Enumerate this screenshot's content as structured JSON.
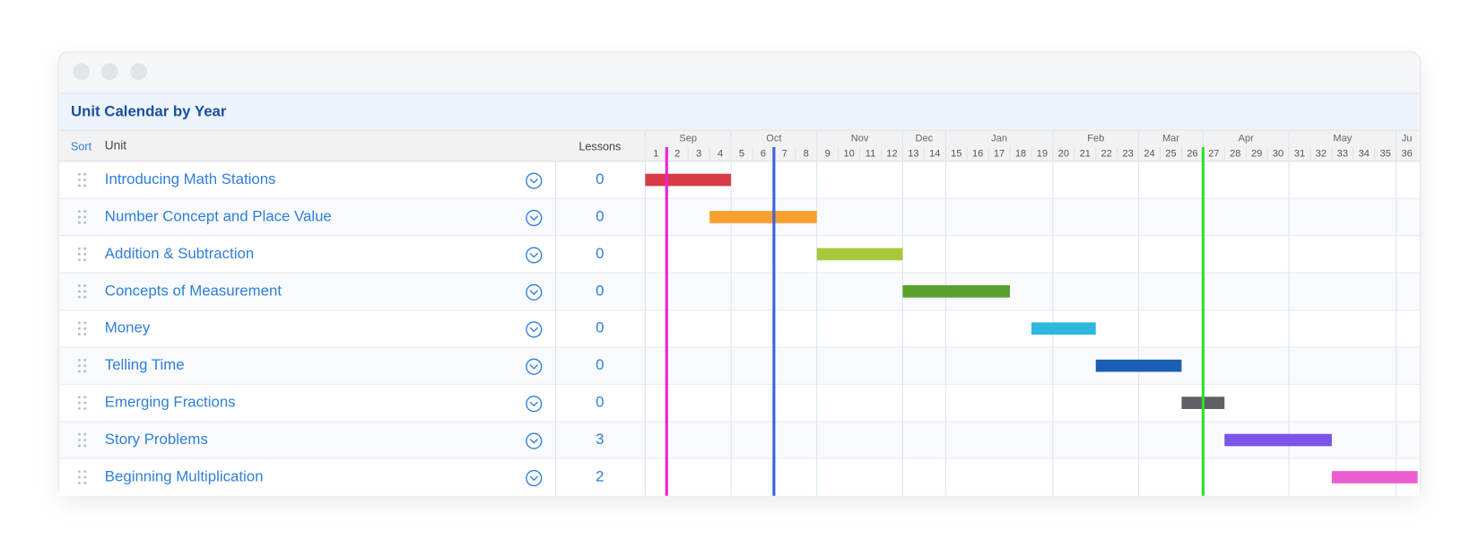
{
  "window": {
    "title": "Unit Calendar by Year"
  },
  "columns": {
    "sort": "Sort",
    "unit": "Unit",
    "lessons": "Lessons"
  },
  "timeline": {
    "weeks": [
      1,
      2,
      3,
      4,
      5,
      6,
      7,
      8,
      9,
      10,
      11,
      12,
      13,
      14,
      15,
      16,
      17,
      18,
      19,
      20,
      21,
      22,
      23,
      24,
      25,
      26,
      27,
      28,
      29,
      30,
      31,
      32,
      33,
      34,
      35,
      36
    ],
    "months": [
      {
        "label": "Sep",
        "start_week": 1,
        "weeks": 4
      },
      {
        "label": "Oct",
        "start_week": 5,
        "weeks": 4
      },
      {
        "label": "Nov",
        "start_week": 9,
        "weeks": 4
      },
      {
        "label": "Dec",
        "start_week": 13,
        "weeks": 2
      },
      {
        "label": "Jan",
        "start_week": 15,
        "weeks": 5
      },
      {
        "label": "Feb",
        "start_week": 20,
        "weeks": 4
      },
      {
        "label": "Mar",
        "start_week": 24,
        "weeks": 3
      },
      {
        "label": "Apr",
        "start_week": 27,
        "weeks": 4
      },
      {
        "label": "May",
        "start_week": 31,
        "weeks": 5
      },
      {
        "label": "Ju",
        "start_week": 36,
        "weeks": 1
      }
    ],
    "markers": [
      {
        "week": 2,
        "color": "#ee22d8"
      },
      {
        "week": 7,
        "color": "#3e63dc"
      },
      {
        "week": 27,
        "color": "#2ee02e"
      }
    ]
  },
  "rows": [
    {
      "unit": "Introducing Math Stations",
      "lessons": 0,
      "start_week": 1,
      "end_week": 4,
      "color": "#d83b45"
    },
    {
      "unit": "Number Concept and Place Value",
      "lessons": 0,
      "start_week": 4,
      "end_week": 8,
      "color": "#f7a030"
    },
    {
      "unit": "Addition & Subtraction",
      "lessons": 0,
      "start_week": 9,
      "end_week": 12,
      "color": "#a8c83c"
    },
    {
      "unit": "Concepts of Measurement",
      "lessons": 0,
      "start_week": 13,
      "end_week": 17,
      "color": "#5aa02c"
    },
    {
      "unit": "Money",
      "lessons": 0,
      "start_week": 19,
      "end_week": 21,
      "color": "#2eb8e0"
    },
    {
      "unit": "Telling Time",
      "lessons": 0,
      "start_week": 22,
      "end_week": 25,
      "color": "#1a5fb4"
    },
    {
      "unit": "Emerging Fractions",
      "lessons": 0,
      "start_week": 26,
      "end_week": 27,
      "color": "#5f6066"
    },
    {
      "unit": "Story Problems",
      "lessons": 3,
      "start_week": 28,
      "end_week": 32,
      "color": "#7a55e8"
    },
    {
      "unit": "Beginning Multiplication",
      "lessons": 2,
      "start_week": 33,
      "end_week": 36,
      "color": "#ea5fd0"
    }
  ]
}
